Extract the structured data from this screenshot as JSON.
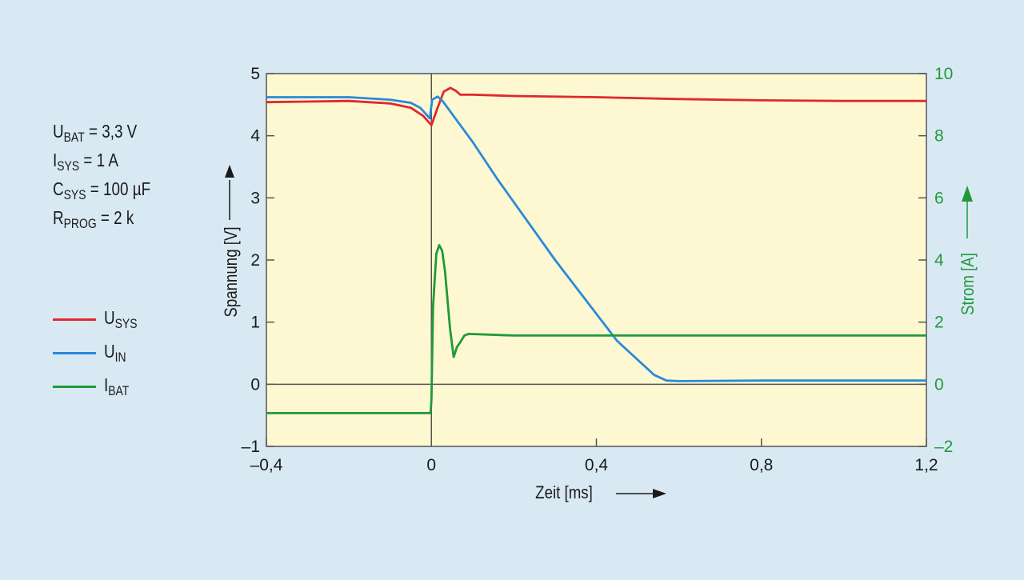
{
  "params": [
    {
      "main": "U",
      "sub": "BAT",
      "rest": " = 3,3 V"
    },
    {
      "main": "I",
      "sub": "SYS",
      "rest": " = 1 A"
    },
    {
      "main": "C",
      "sub": "SYS",
      "rest": " = 100 µF"
    },
    {
      "main": "R",
      "sub": "PROG",
      "rest": " = 2 k"
    }
  ],
  "colors": {
    "usys": "#e0282e",
    "uin": "#2a8ad8",
    "ibat": "#1f9a3a",
    "plot_bg": "#fdf8d2"
  },
  "chart_data": {
    "type": "line",
    "xlabel": "Zeit [ms]",
    "ylabel": "Spannung [V]",
    "y2label": "Strom [A]",
    "xlim": [
      -0.4,
      1.2
    ],
    "ylim": [
      -1,
      5
    ],
    "y2lim": [
      -2,
      10
    ],
    "xticks": [
      "–0,4",
      "0",
      "0,4",
      "0,8",
      "1,2"
    ],
    "xtick_values": [
      -0.4,
      0,
      0.4,
      0.8,
      1.2
    ],
    "yticks": [
      "–1",
      "0",
      "1",
      "2",
      "3",
      "4",
      "5"
    ],
    "ytick_values": [
      -1,
      0,
      1,
      2,
      3,
      4,
      5
    ],
    "y2ticks": [
      "–2",
      "0",
      "2",
      "4",
      "6",
      "8",
      "10"
    ],
    "y2tick_values": [
      -2,
      0,
      2,
      4,
      6,
      8,
      10
    ],
    "legend": [
      {
        "main": "U",
        "sub": "SYS",
        "key": "usys"
      },
      {
        "main": "U",
        "sub": "IN",
        "key": "uin"
      },
      {
        "main": "I",
        "sub": "BAT",
        "key": "ibat"
      }
    ],
    "series": [
      {
        "name": "USYS",
        "axis": "left",
        "x": [
          -0.4,
          -0.2,
          -0.1,
          -0.05,
          -0.02,
          0.0,
          0.015,
          0.03,
          0.046,
          0.06,
          0.07,
          0.1,
          0.2,
          0.4,
          0.6,
          0.8,
          1.0,
          1.2
        ],
        "y": [
          4.54,
          4.56,
          4.52,
          4.45,
          4.32,
          4.17,
          4.45,
          4.71,
          4.77,
          4.72,
          4.66,
          4.66,
          4.64,
          4.62,
          4.59,
          4.57,
          4.56,
          4.56
        ]
      },
      {
        "name": "UIN",
        "axis": "left",
        "x": [
          -0.4,
          -0.2,
          -0.1,
          -0.05,
          -0.027,
          -0.004,
          0.002,
          0.015,
          0.027,
          0.1,
          0.16,
          0.3,
          0.45,
          0.54,
          0.57,
          0.6,
          0.8,
          1.0,
          1.2
        ],
        "y": [
          4.62,
          4.62,
          4.58,
          4.53,
          4.45,
          4.28,
          4.58,
          4.63,
          4.56,
          3.9,
          3.3,
          2.0,
          0.7,
          0.15,
          0.06,
          0.05,
          0.06,
          0.06,
          0.06
        ]
      },
      {
        "name": "IBAT",
        "axis": "right",
        "x": [
          -0.4,
          -0.2,
          -0.002,
          0.0,
          0.004,
          0.012,
          0.019,
          0.026,
          0.033,
          0.045,
          0.054,
          0.062,
          0.07,
          0.08,
          0.09,
          0.2,
          0.6,
          1.0,
          1.2
        ],
        "y": [
          -0.93,
          -0.93,
          -0.93,
          -0.5,
          2.5,
          4.2,
          4.48,
          4.3,
          3.63,
          1.8,
          0.88,
          1.2,
          1.35,
          1.57,
          1.62,
          1.57,
          1.57,
          1.57,
          1.57
        ]
      }
    ]
  }
}
